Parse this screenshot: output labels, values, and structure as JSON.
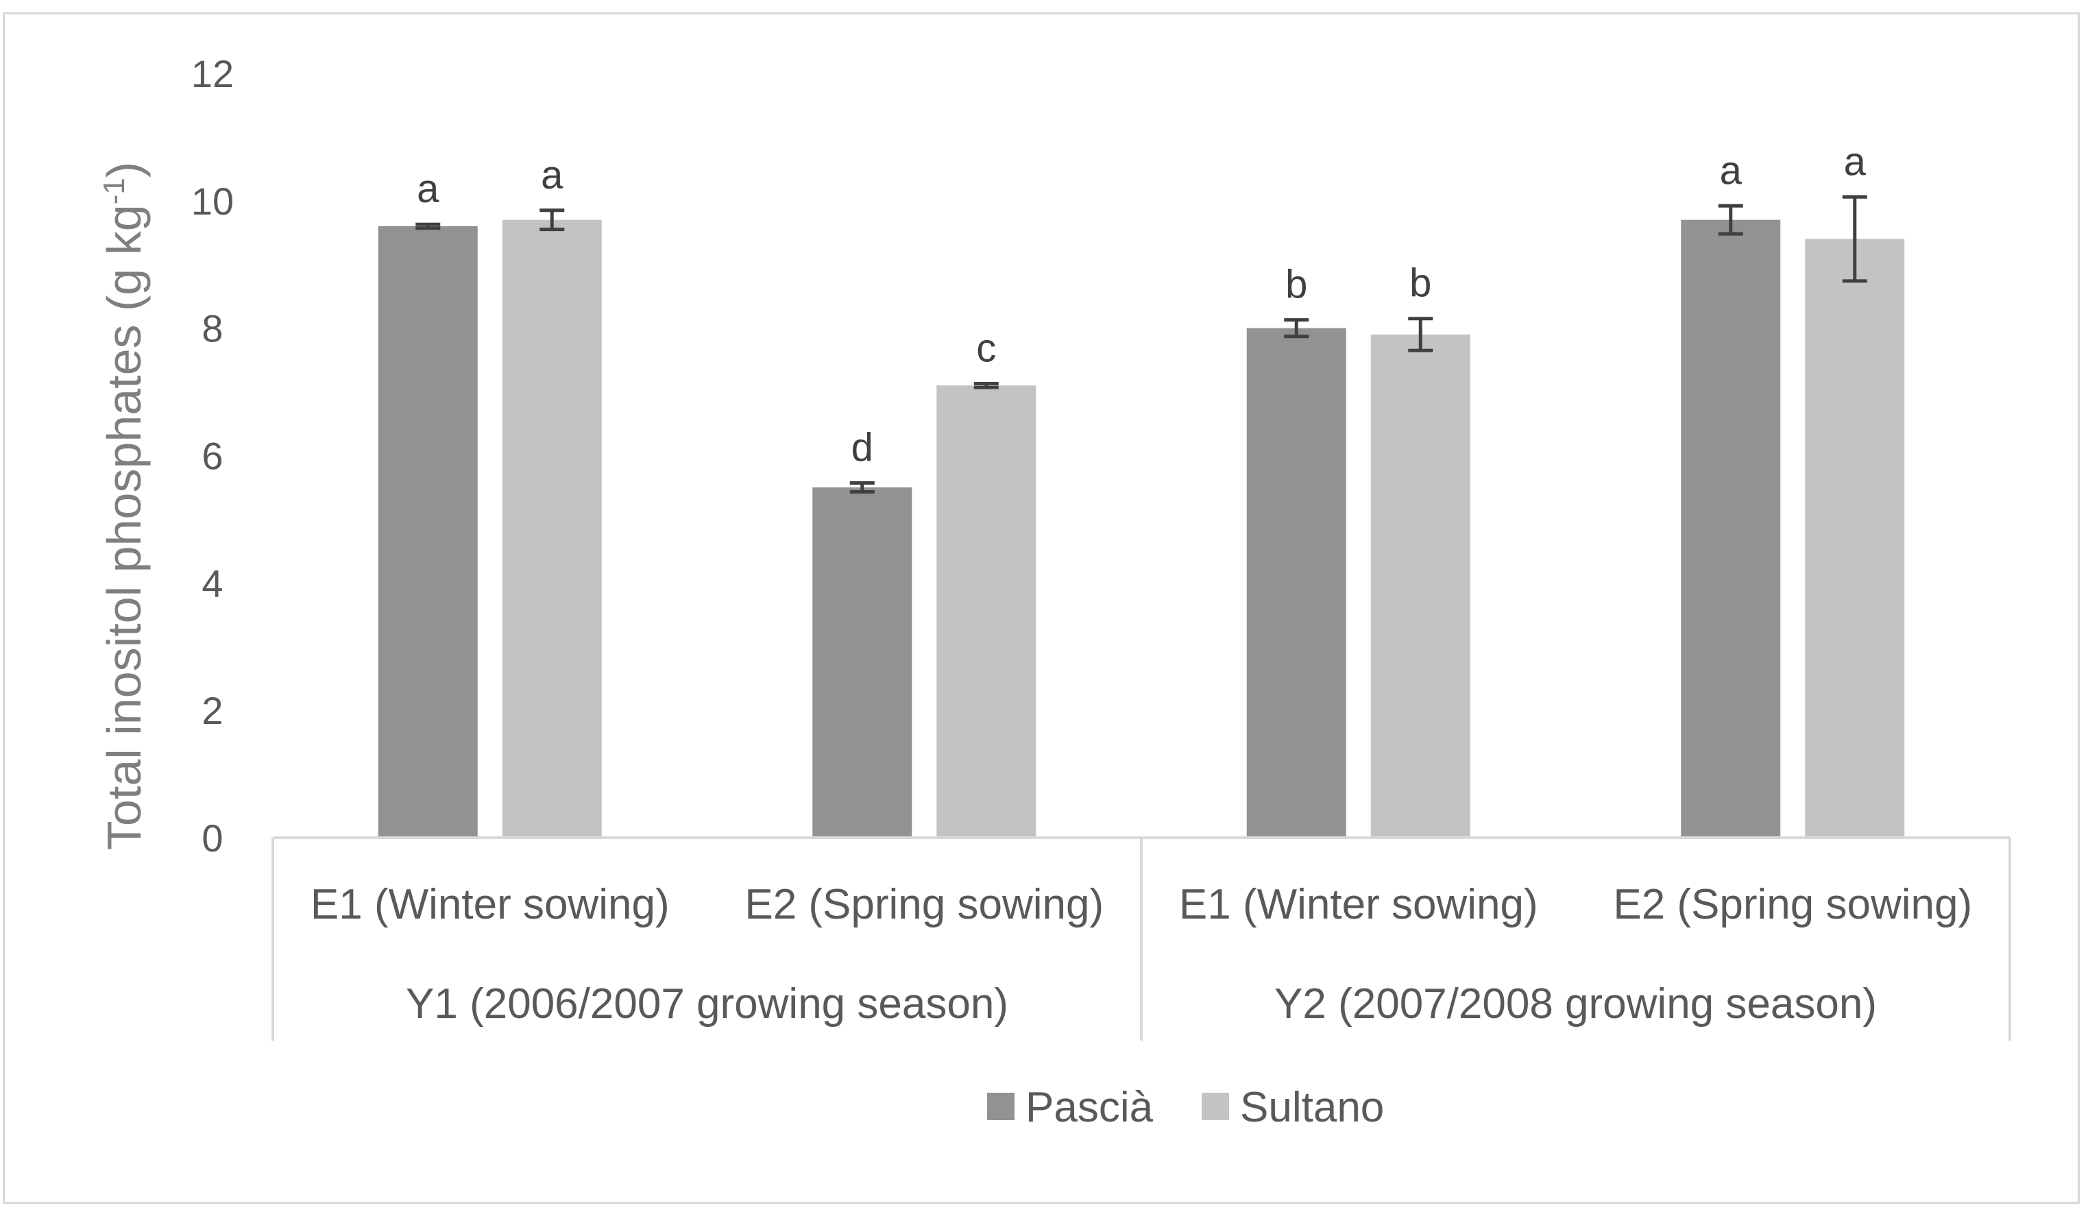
{
  "chart_data": {
    "type": "bar",
    "title": "",
    "ylabel": "Total inositol phosphates (g kg-1)",
    "ylabel_main": "Total inositol phosphates (g kg",
    "ylabel_sup": "-1",
    "ylabel_close": ")",
    "ylim": [
      0,
      12
    ],
    "yticks": [
      "0",
      "2",
      "4",
      "6",
      "8",
      "10",
      "12"
    ],
    "groups": [
      {
        "label": "Y1 (2006/2007 growing season)",
        "categories": [
          "E1 (Winter sowing)",
          "E2 (Spring sowing)"
        ]
      },
      {
        "label": "Y2 (2007/2008 growing season)",
        "categories": [
          "E1 (Winter sowing)",
          "E2 (Spring sowing)"
        ]
      }
    ],
    "categories": [
      "E1 (Winter sowing)",
      "E2 (Spring sowing)",
      "E1 (Winter sowing)",
      "E2 (Spring sowing)"
    ],
    "series": [
      {
        "name": "Pascià",
        "color": "#929292",
        "values": [
          9.6,
          5.5,
          8.0,
          9.7
        ],
        "errors": [
          0.03,
          0.07,
          0.13,
          0.22
        ],
        "letters": [
          "a",
          "d",
          "b",
          "a"
        ]
      },
      {
        "name": "Sultano",
        "color": "#c3c3c3",
        "values": [
          9.7,
          7.1,
          7.9,
          9.4
        ],
        "errors": [
          0.15,
          0.03,
          0.25,
          0.66
        ],
        "letters": [
          "a",
          "c",
          "b",
          "a"
        ]
      }
    ],
    "legend_position": "bottom",
    "grid": false
  }
}
